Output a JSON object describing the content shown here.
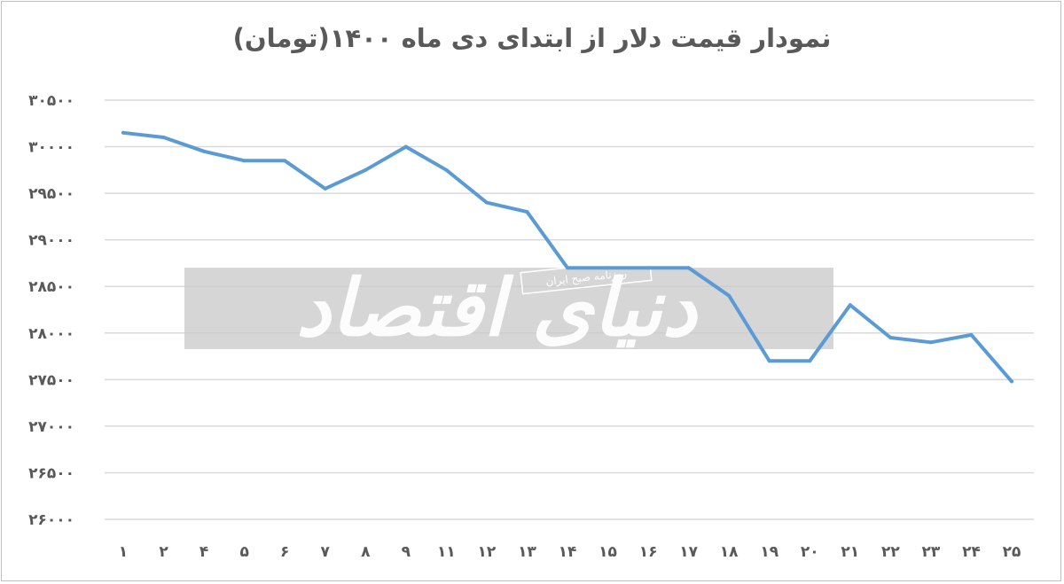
{
  "chart_data": {
    "type": "line",
    "title": "نمودار قیمت دلار از ابتدای دی ماه  ۱۴۰۰(تومان)",
    "xlabel": "",
    "ylabel": "",
    "ylim": [
      26000,
      30500
    ],
    "y_ticks": [
      30500,
      30000,
      29500,
      29000,
      28500,
      28000,
      27500,
      27000,
      26500,
      26000
    ],
    "y_tick_labels": [
      "۳۰۵۰۰",
      "۳۰۰۰۰",
      "۲۹۵۰۰",
      "۲۹۰۰۰",
      "۲۸۵۰۰",
      "۲۸۰۰۰",
      "۲۷۵۰۰",
      "۲۷۰۰۰",
      "۲۶۵۰۰",
      "۲۶۰۰۰"
    ],
    "categories": [
      "۱",
      "۲",
      "۴",
      "۵",
      "۶",
      "۷",
      "۸",
      "۹",
      "۱۱",
      "۱۲",
      "۱۳",
      "۱۴",
      "۱۵",
      "۱۶",
      "۱۷",
      "۱۸",
      "۱۹",
      "۲۰",
      "۲۱",
      "۲۲",
      "۲۳",
      "۲۴",
      "۲۵"
    ],
    "values": [
      30150,
      30100,
      29950,
      29850,
      29850,
      29550,
      29750,
      30000,
      29750,
      29400,
      29300,
      28700,
      28700,
      28700,
      28700,
      28400,
      27700,
      27700,
      28300,
      27950,
      27900,
      27980,
      27480
    ],
    "grid": true,
    "legend": "none",
    "line_color": "#5b9bd5",
    "grid_color": "#d9d9d9",
    "text_color": "#595959"
  },
  "watermark": {
    "logo_text": "دنیای اقتصاد",
    "tagline": "روزنامه صبح ایران",
    "band_color": "#bfbfbf"
  }
}
